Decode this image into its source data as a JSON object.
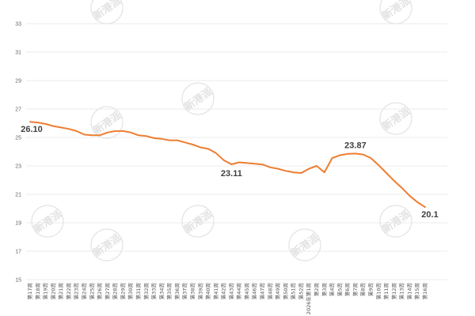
{
  "watermark": "新港派",
  "colors": {
    "line": "#EE7D31",
    "grid": "#E4E4E4",
    "tick": "#666666",
    "data_label": "#404040"
  },
  "chart_data": {
    "type": "line",
    "title": "",
    "xlabel": "",
    "ylabel": "",
    "ylim": [
      15,
      33
    ],
    "yticks": [
      15,
      17,
      19,
      21,
      23,
      25,
      27,
      29,
      31,
      33
    ],
    "grid": true,
    "legend": "none",
    "categories": [
      "第17周",
      "第18周",
      "第19周",
      "第20周",
      "第21周",
      "第22周",
      "第23周",
      "第24周",
      "第25周",
      "第26周",
      "第27周",
      "第28周",
      "第29周",
      "第30周",
      "第31周",
      "第32周",
      "第33周",
      "第34周",
      "第35周",
      "第36周",
      "第37周",
      "第38周",
      "第39周",
      "第40周",
      "第41周",
      "第42周",
      "第43周",
      "第44周",
      "第45周",
      "第46周",
      "第47周",
      "第48周",
      "第49周",
      "第50周",
      "第51周",
      "第52周",
      "2026年第1周",
      "第2周",
      "第3周",
      "第4周",
      "第5周",
      "第6周",
      "第7周",
      "第8周",
      "第9周",
      "第10周",
      "第11周",
      "第12周",
      "第13周",
      "第14周",
      "第15周",
      "第16周"
    ],
    "series": [
      {
        "values": [
          26.1,
          26.05,
          25.95,
          25.8,
          25.7,
          25.6,
          25.45,
          25.2,
          25.15,
          25.15,
          25.35,
          25.45,
          25.45,
          25.35,
          25.15,
          25.1,
          24.95,
          24.9,
          24.8,
          24.8,
          24.65,
          24.5,
          24.3,
          24.2,
          23.9,
          23.4,
          23.11,
          23.25,
          23.2,
          23.15,
          23.1,
          22.9,
          22.8,
          22.65,
          22.55,
          22.5,
          22.8,
          23.0,
          22.55,
          23.55,
          23.75,
          23.85,
          23.87,
          23.8,
          23.55,
          23.05,
          22.5,
          21.95,
          21.45,
          20.9,
          20.45,
          20.1
        ]
      }
    ],
    "data_labels": [
      {
        "index": 0,
        "text": "26.10"
      },
      {
        "index": 26,
        "text": "23.11"
      },
      {
        "index": 42,
        "text": "23.87"
      },
      {
        "index": 51,
        "text": "20.1"
      }
    ]
  }
}
